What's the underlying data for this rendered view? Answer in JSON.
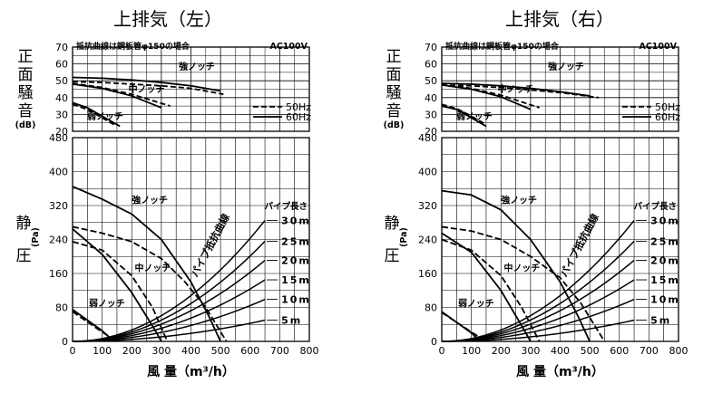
{
  "chart_data": [
    {
      "type": "line",
      "title": "上排気（左）",
      "noise_chart": {
        "ylabel_chars": [
          "正",
          "面",
          "騒",
          "音"
        ],
        "ylabel_unit": "(dB)",
        "yticks": [
          20,
          30,
          40,
          50,
          60,
          70
        ],
        "ylim": [
          20,
          70
        ],
        "note": "抵抗曲線は鋼板管φ150の場合",
        "voltage": "AC100V",
        "legend": [
          {
            "name": "50Hz",
            "style": "dashed"
          },
          {
            "name": "60Hz",
            "style": "solid"
          }
        ],
        "series": [
          {
            "label": "強ノッチ",
            "freq": "60Hz",
            "x": [
              0,
              100,
              200,
              300,
              400,
              500
            ],
            "y": [
              52,
              51.5,
              50.5,
              49,
              47,
              44
            ]
          },
          {
            "label": "強ノッチ",
            "freq": "50Hz",
            "x": [
              0,
              100,
              200,
              300,
              400,
              510
            ],
            "y": [
              49.5,
              49,
              48,
              47,
              45.5,
              42
            ]
          },
          {
            "label": "中ノッチ",
            "freq": "60Hz",
            "x": [
              0,
              100,
              200,
              300
            ],
            "y": [
              48,
              45.5,
              41,
              34
            ]
          },
          {
            "label": "中ノッチ",
            "freq": "50Hz",
            "x": [
              0,
              100,
              200,
              330
            ],
            "y": [
              48.5,
              46,
              42,
              35
            ]
          },
          {
            "label": "弱ノッチ",
            "freq": "60Hz",
            "x": [
              0,
              50,
              100,
              160
            ],
            "y": [
              37,
              34,
              29,
              23
            ]
          },
          {
            "label": "弱ノッチ",
            "freq": "50Hz",
            "x": [
              0,
              50,
              100,
              140
            ],
            "y": [
              36,
              33,
              28,
              24
            ]
          }
        ]
      },
      "pressure_chart": {
        "ylabel_chars": [
          "静",
          "圧"
        ],
        "ylabel_unit": "(Pa)",
        "xlabel": "風 量（m³/h）",
        "xlim": [
          0,
          800
        ],
        "ylim": [
          0,
          480
        ],
        "xticks": [
          0,
          100,
          200,
          300,
          400,
          500,
          600,
          700,
          800
        ],
        "yticks": [
          0,
          80,
          160,
          240,
          320,
          400,
          480
        ],
        "series": [
          {
            "label": "強ノッチ",
            "freq": "60Hz",
            "x": [
              0,
              100,
              200,
              300,
              400,
              460,
              500
            ],
            "y": [
              365,
              335,
              300,
              240,
              140,
              60,
              0
            ]
          },
          {
            "label": "強ノッチ",
            "freq": "50Hz",
            "x": [
              0,
              100,
              200,
              300,
              380,
              450,
              520
            ],
            "y": [
              270,
              255,
              235,
              195,
              140,
              80,
              0
            ]
          },
          {
            "label": "中ノッチ",
            "freq": "60Hz",
            "x": [
              0,
              100,
              200,
              280,
              300
            ],
            "y": [
              265,
              205,
              115,
              25,
              0
            ]
          },
          {
            "label": "中ノッチ",
            "freq": "50Hz",
            "x": [
              0,
              100,
              200,
              270,
              320
            ],
            "y": [
              235,
              215,
              155,
              80,
              0
            ]
          },
          {
            "label": "弱ノッチ",
            "freq": "60Hz",
            "x": [
              0,
              100,
              140
            ],
            "y": [
              75,
              25,
              0
            ]
          },
          {
            "label": "弱ノッチ",
            "freq": "50Hz",
            "x": [
              0,
              100,
              150
            ],
            "y": [
              70,
              22,
              0
            ]
          }
        ],
        "resistance_title": "パイプ長さ",
        "resistance_label": "パイプ抵抗曲線",
        "resistance": [
          {
            "name": "30m",
            "y_end": 285
          },
          {
            "name": "25m",
            "y_end": 236
          },
          {
            "name": "20m",
            "y_end": 191
          },
          {
            "name": "15m",
            "y_end": 145
          },
          {
            "name": "10m",
            "y_end": 99
          },
          {
            "name": "5m",
            "y_end": 50
          }
        ]
      }
    },
    {
      "type": "line",
      "title": "上排気（右）",
      "noise_chart": {
        "ylabel_chars": [
          "正",
          "面",
          "騒",
          "音"
        ],
        "ylabel_unit": "(dB)",
        "yticks": [
          20,
          30,
          40,
          50,
          60,
          70
        ],
        "ylim": [
          20,
          70
        ],
        "note": "抵抗曲線は鋼板管φ150の場合",
        "voltage": "AC100V",
        "legend": [
          {
            "name": "50Hz",
            "style": "dashed"
          },
          {
            "name": "60Hz",
            "style": "solid"
          }
        ],
        "series": [
          {
            "label": "強ノッチ",
            "freq": "60Hz",
            "x": [
              0,
              100,
              200,
              300,
              400,
              500
            ],
            "y": [
              48.5,
              48,
              47,
              45.5,
              43.5,
              41
            ]
          },
          {
            "label": "強ノッチ",
            "freq": "50Hz",
            "x": [
              0,
              100,
              200,
              300,
              400,
              530
            ],
            "y": [
              47.5,
              47,
              46,
              44.5,
              43,
              40
            ]
          },
          {
            "label": "中ノッチ",
            "freq": "60Hz",
            "x": [
              0,
              100,
              200,
              300
            ],
            "y": [
              47.5,
              45,
              40.5,
              33
            ]
          },
          {
            "label": "中ノッチ",
            "freq": "50Hz",
            "x": [
              0,
              100,
              200,
              330
            ],
            "y": [
              48,
              45.5,
              41.5,
              34
            ]
          },
          {
            "label": "弱ノッチ",
            "freq": "60Hz",
            "x": [
              0,
              50,
              100,
              150
            ],
            "y": [
              35,
              33,
              28,
              23
            ]
          },
          {
            "label": "弱ノッチ",
            "freq": "50Hz",
            "x": [
              0,
              50,
              100,
              150
            ],
            "y": [
              36,
              33.5,
              29,
              24
            ]
          }
        ]
      },
      "pressure_chart": {
        "ylabel_chars": [
          "静",
          "圧"
        ],
        "ylabel_unit": "(Pa)",
        "xlabel": "風 量（m³/h）",
        "xlim": [
          0,
          800
        ],
        "ylim": [
          0,
          480
        ],
        "xticks": [
          0,
          100,
          200,
          300,
          400,
          500,
          600,
          700,
          800
        ],
        "yticks": [
          0,
          80,
          160,
          240,
          320,
          400,
          480
        ],
        "series": [
          {
            "label": "強ノッチ",
            "freq": "60Hz",
            "x": [
              0,
              100,
              200,
              300,
              400,
              460,
              500
            ],
            "y": [
              355,
              345,
              310,
              240,
              140,
              60,
              0
            ]
          },
          {
            "label": "強ノッチ",
            "freq": "50Hz",
            "x": [
              0,
              100,
              200,
              300,
              400,
              470,
              550
            ],
            "y": [
              270,
              260,
              240,
              200,
              150,
              90,
              0
            ]
          },
          {
            "label": "中ノッチ",
            "freq": "60Hz",
            "x": [
              0,
              100,
              200,
              280,
              300
            ],
            "y": [
              255,
              210,
              120,
              25,
              0
            ]
          },
          {
            "label": "中ノッチ",
            "freq": "50Hz",
            "x": [
              0,
              100,
              200,
              270,
              330
            ],
            "y": [
              240,
              215,
              155,
              80,
              0
            ]
          },
          {
            "label": "弱ノッチ",
            "freq": "60Hz",
            "x": [
              0,
              100,
              130
            ],
            "y": [
              70,
              20,
              0
            ]
          },
          {
            "label": "弱ノッチ",
            "freq": "50Hz",
            "x": [
              0,
              100,
              150
            ],
            "y": [
              68,
              22,
              0
            ]
          }
        ],
        "resistance_title": "パイプ長さ",
        "resistance_label": "パイプ抵抗曲線",
        "resistance": [
          {
            "name": "30m",
            "y_end": 285
          },
          {
            "name": "25m",
            "y_end": 236
          },
          {
            "name": "20m",
            "y_end": 191
          },
          {
            "name": "15m",
            "y_end": 145
          },
          {
            "name": "10m",
            "y_end": 99
          },
          {
            "name": "5m",
            "y_end": 50
          }
        ]
      }
    }
  ]
}
